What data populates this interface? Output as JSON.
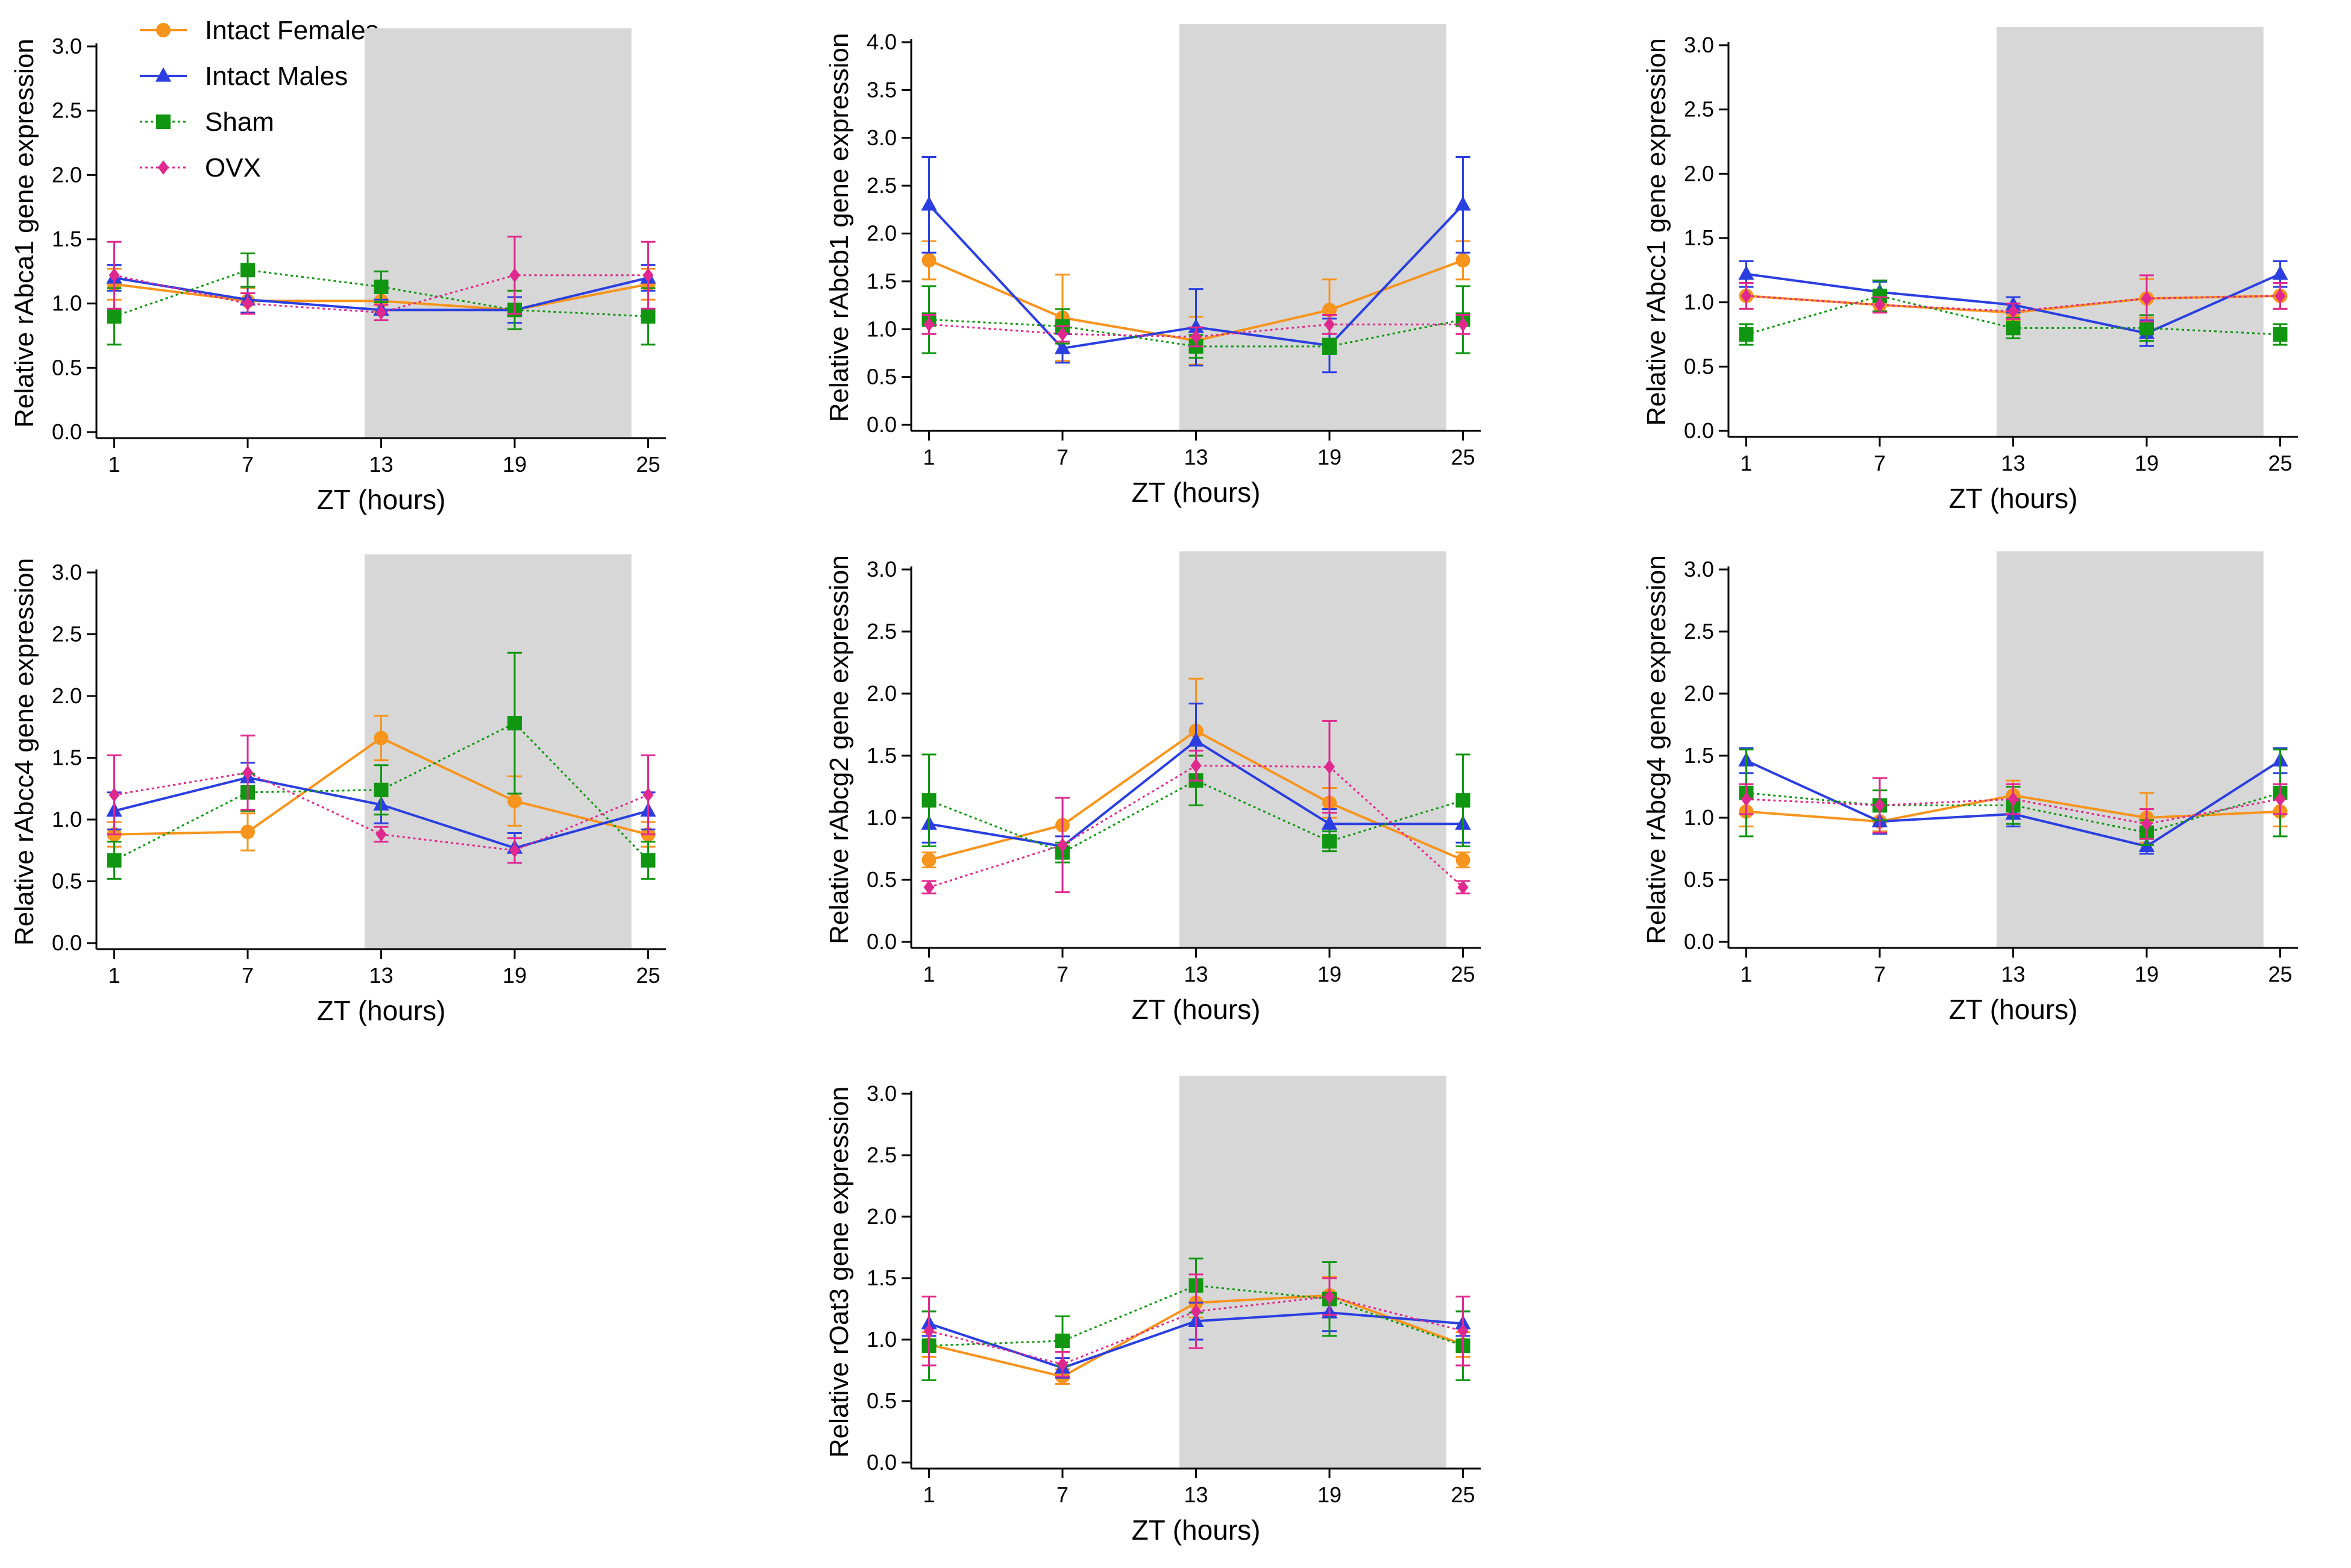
{
  "legend": {
    "entries": [
      {
        "name": "Intact Females",
        "color": "#F7941D",
        "marker": "circle",
        "dash": "solid"
      },
      {
        "name": "Intact Males",
        "color": "#2B3FE0",
        "marker": "triangle",
        "dash": "solid"
      },
      {
        "name": "Sham",
        "color": "#109610",
        "marker": "square",
        "dash": "dotted"
      },
      {
        "name": "OVX",
        "color": "#E0298E",
        "marker": "diamond",
        "dash": "dotted"
      }
    ]
  },
  "shade_color": "#D7D7D8",
  "chart_data": [
    {
      "type": "line",
      "ylabel": "Relative rAbca1 gene expression",
      "xlabel": "ZT (hours)",
      "x": [
        1,
        7,
        13,
        19,
        25
      ],
      "xticks": [
        "1",
        "7",
        "13",
        "19",
        "25"
      ],
      "ylim": [
        0,
        3.0
      ],
      "yticks": [
        "0.0",
        "0.5",
        "1.0",
        "1.5",
        "2.0",
        "2.5",
        "3.0"
      ],
      "shade": [
        12.25,
        24.25
      ],
      "series": [
        {
          "name": "Intact Females",
          "values": [
            1.15,
            1.02,
            1.02,
            0.95,
            1.15
          ],
          "err": [
            0.12,
            0.1,
            0.08,
            0.15,
            0.12
          ]
        },
        {
          "name": "Intact Males",
          "values": [
            1.2,
            1.03,
            0.95,
            0.95,
            1.2
          ],
          "err": [
            0.1,
            0.1,
            0.08,
            0.1,
            0.1
          ]
        },
        {
          "name": "Sham",
          "values": [
            0.9,
            1.26,
            1.13,
            0.95,
            0.9
          ],
          "err": [
            0.22,
            0.13,
            0.12,
            0.15,
            0.22
          ]
        },
        {
          "name": "OVX",
          "values": [
            1.22,
            1.0,
            0.93,
            1.22,
            1.22
          ],
          "err": [
            0.26,
            0.08,
            0.06,
            0.3,
            0.26
          ]
        }
      ]
    },
    {
      "type": "line",
      "ylabel": "Relative rAbcb1 gene expression",
      "xlabel": "ZT (hours)",
      "x": [
        1,
        7,
        13,
        19,
        25
      ],
      "xticks": [
        "1",
        "7",
        "13",
        "19",
        "25"
      ],
      "ylim": [
        0,
        4.0
      ],
      "yticks": [
        "0.0",
        "0.5",
        "1.0",
        "1.5",
        "2.0",
        "2.5",
        "3.0",
        "3.5",
        "4.0"
      ],
      "shade": [
        12.25,
        24.25
      ],
      "series": [
        {
          "name": "Intact Females",
          "values": [
            1.72,
            1.12,
            0.88,
            1.2,
            1.72
          ],
          "err": [
            0.2,
            0.45,
            0.25,
            0.32,
            0.2
          ]
        },
        {
          "name": "Intact Males",
          "values": [
            2.3,
            0.8,
            1.02,
            0.83,
            2.3
          ],
          "err": [
            0.5,
            0.15,
            0.4,
            0.28,
            0.5
          ]
        },
        {
          "name": "Sham",
          "values": [
            1.1,
            1.03,
            0.82,
            0.82,
            1.1
          ],
          "err": [
            0.35,
            0.18,
            0.12,
            0.08,
            0.35
          ]
        },
        {
          "name": "OVX",
          "values": [
            1.05,
            0.95,
            0.92,
            1.05,
            1.05
          ],
          "err": [
            0.1,
            0.08,
            0.1,
            0.1,
            0.1
          ]
        }
      ]
    },
    {
      "type": "line",
      "ylabel": "Relative rAbcc1 gene expression",
      "xlabel": "ZT (hours)",
      "x": [
        1,
        7,
        13,
        19,
        25
      ],
      "xticks": [
        "1",
        "7",
        "13",
        "19",
        "25"
      ],
      "ylim": [
        0,
        3.0
      ],
      "yticks": [
        "0.0",
        "0.5",
        "1.0",
        "1.5",
        "2.0",
        "2.5",
        "3.0"
      ],
      "shade": [
        12.25,
        24.25
      ],
      "series": [
        {
          "name": "Intact Females",
          "values": [
            1.05,
            0.98,
            0.92,
            1.03,
            1.05
          ],
          "err": [
            0.1,
            0.06,
            0.06,
            0.15,
            0.1
          ]
        },
        {
          "name": "Intact Males",
          "values": [
            1.22,
            1.08,
            0.98,
            0.76,
            1.22
          ],
          "err": [
            0.1,
            0.08,
            0.06,
            0.1,
            0.1
          ]
        },
        {
          "name": "Sham",
          "values": [
            0.75,
            1.05,
            0.8,
            0.8,
            0.75
          ],
          "err": [
            0.08,
            0.12,
            0.08,
            0.1,
            0.08
          ]
        },
        {
          "name": "OVX",
          "values": [
            1.05,
            0.98,
            0.93,
            1.03,
            1.05
          ],
          "err": [
            0.1,
            0.06,
            0.06,
            0.18,
            0.1
          ]
        }
      ]
    },
    {
      "type": "line",
      "ylabel": "Relative rAbcc4 gene expression",
      "xlabel": "ZT (hours)",
      "x": [
        1,
        7,
        13,
        19,
        25
      ],
      "xticks": [
        "1",
        "7",
        "13",
        "19",
        "25"
      ],
      "ylim": [
        0,
        3.0
      ],
      "yticks": [
        "0.0",
        "0.5",
        "1.0",
        "1.5",
        "2.0",
        "2.5",
        "3.0"
      ],
      "shade": [
        12.25,
        24.25
      ],
      "series": [
        {
          "name": "Intact Females",
          "values": [
            0.88,
            0.9,
            1.66,
            1.15,
            0.88
          ],
          "err": [
            0.1,
            0.15,
            0.18,
            0.2,
            0.1
          ]
        },
        {
          "name": "Intact Males",
          "values": [
            1.07,
            1.34,
            1.12,
            0.77,
            1.07
          ],
          "err": [
            0.15,
            0.12,
            0.15,
            0.12,
            0.15
          ]
        },
        {
          "name": "Sham",
          "values": [
            0.67,
            1.22,
            1.24,
            1.78,
            0.67
          ],
          "err": [
            0.15,
            0.15,
            0.2,
            0.57,
            0.15
          ]
        },
        {
          "name": "OVX",
          "values": [
            1.2,
            1.38,
            0.88,
            0.75,
            1.2
          ],
          "err": [
            0.32,
            0.3,
            0.06,
            0.1,
            0.32
          ]
        }
      ]
    },
    {
      "type": "line",
      "ylabel": "Relative rAbcg2 gene expression",
      "xlabel": "ZT (hours)",
      "x": [
        1,
        7,
        13,
        19,
        25
      ],
      "xticks": [
        "1",
        "7",
        "13",
        "19",
        "25"
      ],
      "ylim": [
        0,
        3.0
      ],
      "yticks": [
        "0.0",
        "0.5",
        "1.0",
        "1.5",
        "2.0",
        "2.5",
        "3.0"
      ],
      "shade": [
        12.25,
        24.25
      ],
      "series": [
        {
          "name": "Intact Females",
          "values": [
            0.66,
            0.94,
            1.7,
            1.12,
            0.66
          ],
          "err": [
            0.06,
            0.22,
            0.42,
            0.12,
            0.06
          ]
        },
        {
          "name": "Intact Males",
          "values": [
            0.95,
            0.77,
            1.62,
            0.95,
            0.95
          ],
          "err": [
            0.15,
            0.08,
            0.3,
            0.12,
            0.15
          ]
        },
        {
          "name": "Sham",
          "values": [
            1.14,
            0.72,
            1.3,
            0.81,
            1.14
          ],
          "err": [
            0.37,
            0.08,
            0.2,
            0.08,
            0.37
          ]
        },
        {
          "name": "OVX",
          "values": [
            0.44,
            0.78,
            1.42,
            1.41,
            0.44
          ],
          "err": [
            0.05,
            0.38,
            0.12,
            0.37,
            0.05
          ]
        }
      ]
    },
    {
      "type": "line",
      "ylabel": "Relative rAbcg4 gene expression",
      "xlabel": "ZT (hours)",
      "x": [
        1,
        7,
        13,
        19,
        25
      ],
      "xticks": [
        "1",
        "7",
        "13",
        "19",
        "25"
      ],
      "ylim": [
        0,
        3.0
      ],
      "yticks": [
        "0.0",
        "0.5",
        "1.0",
        "1.5",
        "2.0",
        "2.5",
        "3.0"
      ],
      "shade": [
        12.25,
        24.25
      ],
      "series": [
        {
          "name": "Intact Females",
          "values": [
            1.05,
            0.97,
            1.18,
            1.0,
            1.05
          ],
          "err": [
            0.12,
            0.08,
            0.12,
            0.2,
            0.12
          ]
        },
        {
          "name": "Intact Males",
          "values": [
            1.46,
            0.97,
            1.03,
            0.77,
            1.46
          ],
          "err": [
            0.1,
            0.1,
            0.1,
            0.06,
            0.1
          ]
        },
        {
          "name": "Sham",
          "values": [
            1.2,
            1.1,
            1.1,
            0.88,
            1.2
          ],
          "err": [
            0.35,
            0.12,
            0.15,
            0.1,
            0.35
          ]
        },
        {
          "name": "OVX",
          "values": [
            1.15,
            1.1,
            1.15,
            0.95,
            1.15
          ],
          "err": [
            0.12,
            0.22,
            0.12,
            0.12,
            0.12
          ]
        }
      ]
    },
    {
      "type": "line",
      "ylabel": "Relative rOat3 gene expression",
      "xlabel": "ZT (hours)",
      "x": [
        1,
        7,
        13,
        19,
        25
      ],
      "xticks": [
        "1",
        "7",
        "13",
        "19",
        "25"
      ],
      "ylim": [
        0,
        3.0
      ],
      "yticks": [
        "0.0",
        "0.5",
        "1.0",
        "1.5",
        "2.0",
        "2.5",
        "3.0"
      ],
      "shade": [
        12.25,
        24.25
      ],
      "series": [
        {
          "name": "Intact Females",
          "values": [
            0.96,
            0.7,
            1.3,
            1.36,
            0.96
          ],
          "err": [
            0.1,
            0.06,
            0.12,
            0.15,
            0.1
          ]
        },
        {
          "name": "Intact Males",
          "values": [
            1.13,
            0.77,
            1.15,
            1.22,
            1.13
          ],
          "err": [
            0.1,
            0.08,
            0.15,
            0.15,
            0.1
          ]
        },
        {
          "name": "Sham",
          "values": [
            0.95,
            0.99,
            1.44,
            1.33,
            0.95
          ],
          "err": [
            0.28,
            0.2,
            0.22,
            0.3,
            0.28
          ]
        },
        {
          "name": "OVX",
          "values": [
            1.07,
            0.8,
            1.23,
            1.35,
            1.07
          ],
          "err": [
            0.28,
            0.1,
            0.3,
            0.15,
            0.28
          ]
        }
      ]
    }
  ]
}
